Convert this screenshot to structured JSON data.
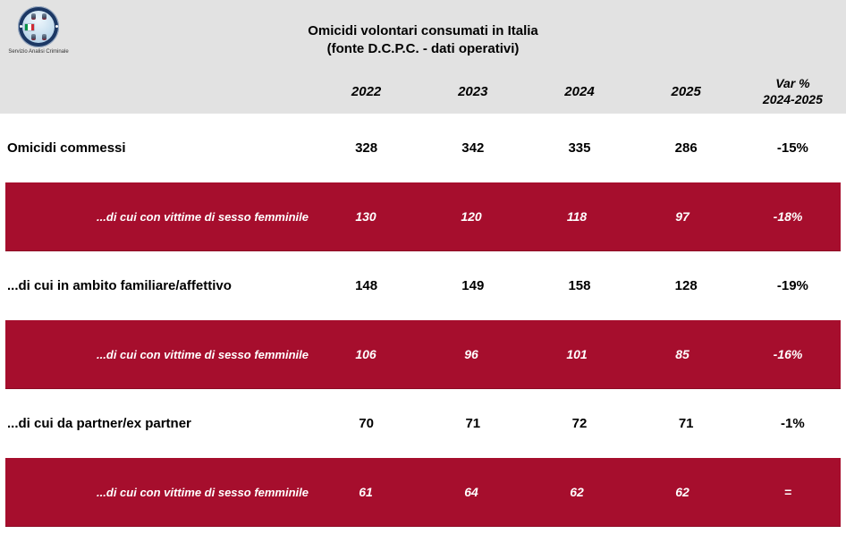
{
  "header": {
    "logo_caption": "Servizio Analisi Criminale",
    "title_line1": "Omicidi volontari consumati in Italia",
    "title_line2": "(fonte D.C.P.C. - dati operativi)",
    "year_columns": [
      "2022",
      "2023",
      "2024",
      "2025"
    ],
    "var_header": {
      "line1": "Var %",
      "line2": "2024-2025"
    }
  },
  "chart_data": {
    "type": "table",
    "title": "Omicidi volontari consumati in Italia",
    "subtitle": "(fonte D.C.P.C. - dati operativi)",
    "columns": [
      "2022",
      "2023",
      "2024",
      "2025",
      "Var % 2024-2025"
    ],
    "rows": [
      {
        "label": "Omicidi commessi",
        "style": "white",
        "values": [
          "328",
          "342",
          "335",
          "286",
          "-15%"
        ]
      },
      {
        "label": "...di cui con vittime di sesso femminile",
        "style": "red",
        "values": [
          "130",
          "120",
          "118",
          "97",
          "-18%"
        ]
      },
      {
        "label": "...di cui in ambito familiare/affettivo",
        "style": "white",
        "values": [
          "148",
          "149",
          "158",
          "128",
          "-19%"
        ]
      },
      {
        "label": "...di cui con vittime di sesso femminile",
        "style": "red",
        "values": [
          "106",
          "96",
          "101",
          "85",
          "-16%"
        ]
      },
      {
        "label": "...di cui da partner/ex partner",
        "style": "white",
        "values": [
          "70",
          "71",
          "72",
          "71",
          "-1%"
        ]
      },
      {
        "label": "...di cui con vittime di sesso femminile",
        "style": "red",
        "values": [
          "61",
          "64",
          "62",
          "62",
          "="
        ]
      }
    ]
  },
  "colors": {
    "red": "#a60e2d",
    "header_gray": "#e2e2e2",
    "logo_navy": "#1c3864",
    "text_dark": "#000000",
    "text_white": "#ffffff"
  }
}
